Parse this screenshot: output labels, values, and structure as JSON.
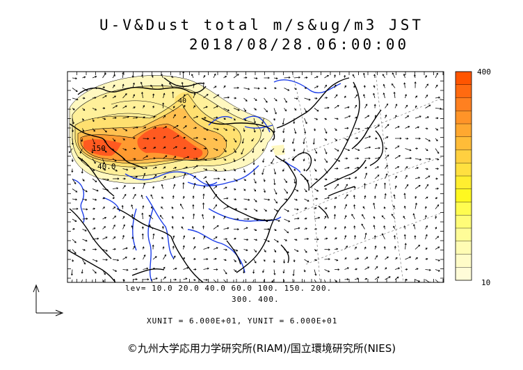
{
  "title": {
    "line1": "U-V&Dust total m/s&ug/m3 JST",
    "line2": "2018/08/28.06:00:00"
  },
  "contour_labels": [
    "150",
    "40.0",
    "40"
  ],
  "levels_line1": "lev= 10.0 20.0 40.0 60.0 100. 150. 200.",
  "levels_line2": "300. 400.",
  "units_text": "XUNIT = 6.000E+01, YUNIT = 6.000E+01",
  "colorbar": {
    "max_label": "400",
    "min_label": "10",
    "colors": [
      "#ff5500",
      "#ff6a10",
      "#ff8020",
      "#ff9428",
      "#ffa830",
      "#ffbc38",
      "#ffd040",
      "#ffe040",
      "#ffee30",
      "#fff820",
      "#fffc50",
      "#fffc78",
      "#fffc98",
      "#fffcb4",
      "#fffcc8",
      "#fffcd8"
    ]
  },
  "copyright": "©九州大学応用力学研究所(RIAM)/国立環境研究所(NIES)",
  "colors": {
    "river": "#1a3ce8",
    "coast": "#000000",
    "dust_low": "#fff8b0",
    "dust_mid": "#ffe070",
    "dust_high": "#ff9a30",
    "dust_peak": "#ff4a20"
  }
}
